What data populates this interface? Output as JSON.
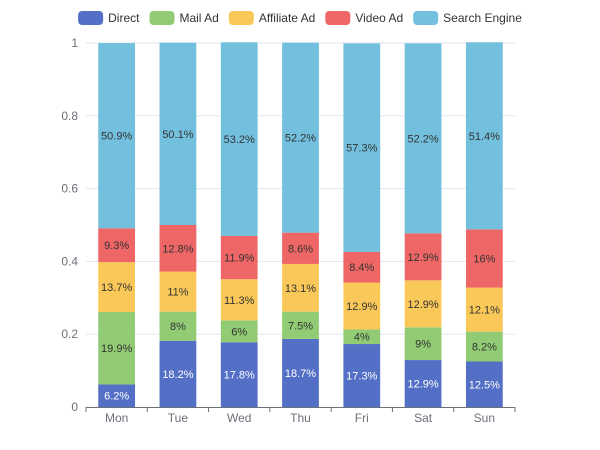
{
  "chart_data": {
    "type": "bar",
    "stacked": true,
    "categories": [
      "Mon",
      "Tue",
      "Wed",
      "Thu",
      "Fri",
      "Sat",
      "Sun"
    ],
    "ylim": [
      0,
      1
    ],
    "yticks": [
      0,
      0.2,
      0.4,
      0.6,
      0.8,
      1
    ],
    "ytick_labels": [
      "0",
      "0.2",
      "0.4",
      "0.6",
      "0.8",
      "1"
    ],
    "legend_position": "top-center",
    "grid": true,
    "series": [
      {
        "name": "Direct",
        "color": "#5470c6",
        "values": [
          0.062,
          0.182,
          0.178,
          0.187,
          0.173,
          0.129,
          0.125
        ],
        "labels": [
          "6.2%",
          "18.2%",
          "17.8%",
          "18.7%",
          "17.3%",
          "12.9%",
          "12.5%"
        ]
      },
      {
        "name": "Mail Ad",
        "color": "#91cc75",
        "values": [
          0.199,
          0.08,
          0.06,
          0.075,
          0.04,
          0.09,
          0.082
        ],
        "labels": [
          "19.9%",
          "8%",
          "6%",
          "7.5%",
          "4%",
          "9%",
          "8.2%"
        ]
      },
      {
        "name": "Affiliate Ad",
        "color": "#fac858",
        "values": [
          0.137,
          0.11,
          0.113,
          0.131,
          0.129,
          0.129,
          0.121
        ],
        "labels": [
          "13.7%",
          "11%",
          "11.3%",
          "13.1%",
          "12.9%",
          "12.9%",
          "12.1%"
        ]
      },
      {
        "name": "Video Ad",
        "color": "#ee6666",
        "values": [
          0.093,
          0.128,
          0.119,
          0.086,
          0.084,
          0.129,
          0.16
        ],
        "labels": [
          "9.3%",
          "12.8%",
          "11.9%",
          "8.6%",
          "8.4%",
          "12.9%",
          "16%"
        ]
      },
      {
        "name": "Search Engine",
        "color": "#73c0de",
        "values": [
          0.509,
          0.501,
          0.532,
          0.522,
          0.573,
          0.522,
          0.514
        ],
        "labels": [
          "50.9%",
          "50.1%",
          "53.2%",
          "52.2%",
          "57.3%",
          "52.2%",
          "51.4%"
        ]
      }
    ]
  }
}
